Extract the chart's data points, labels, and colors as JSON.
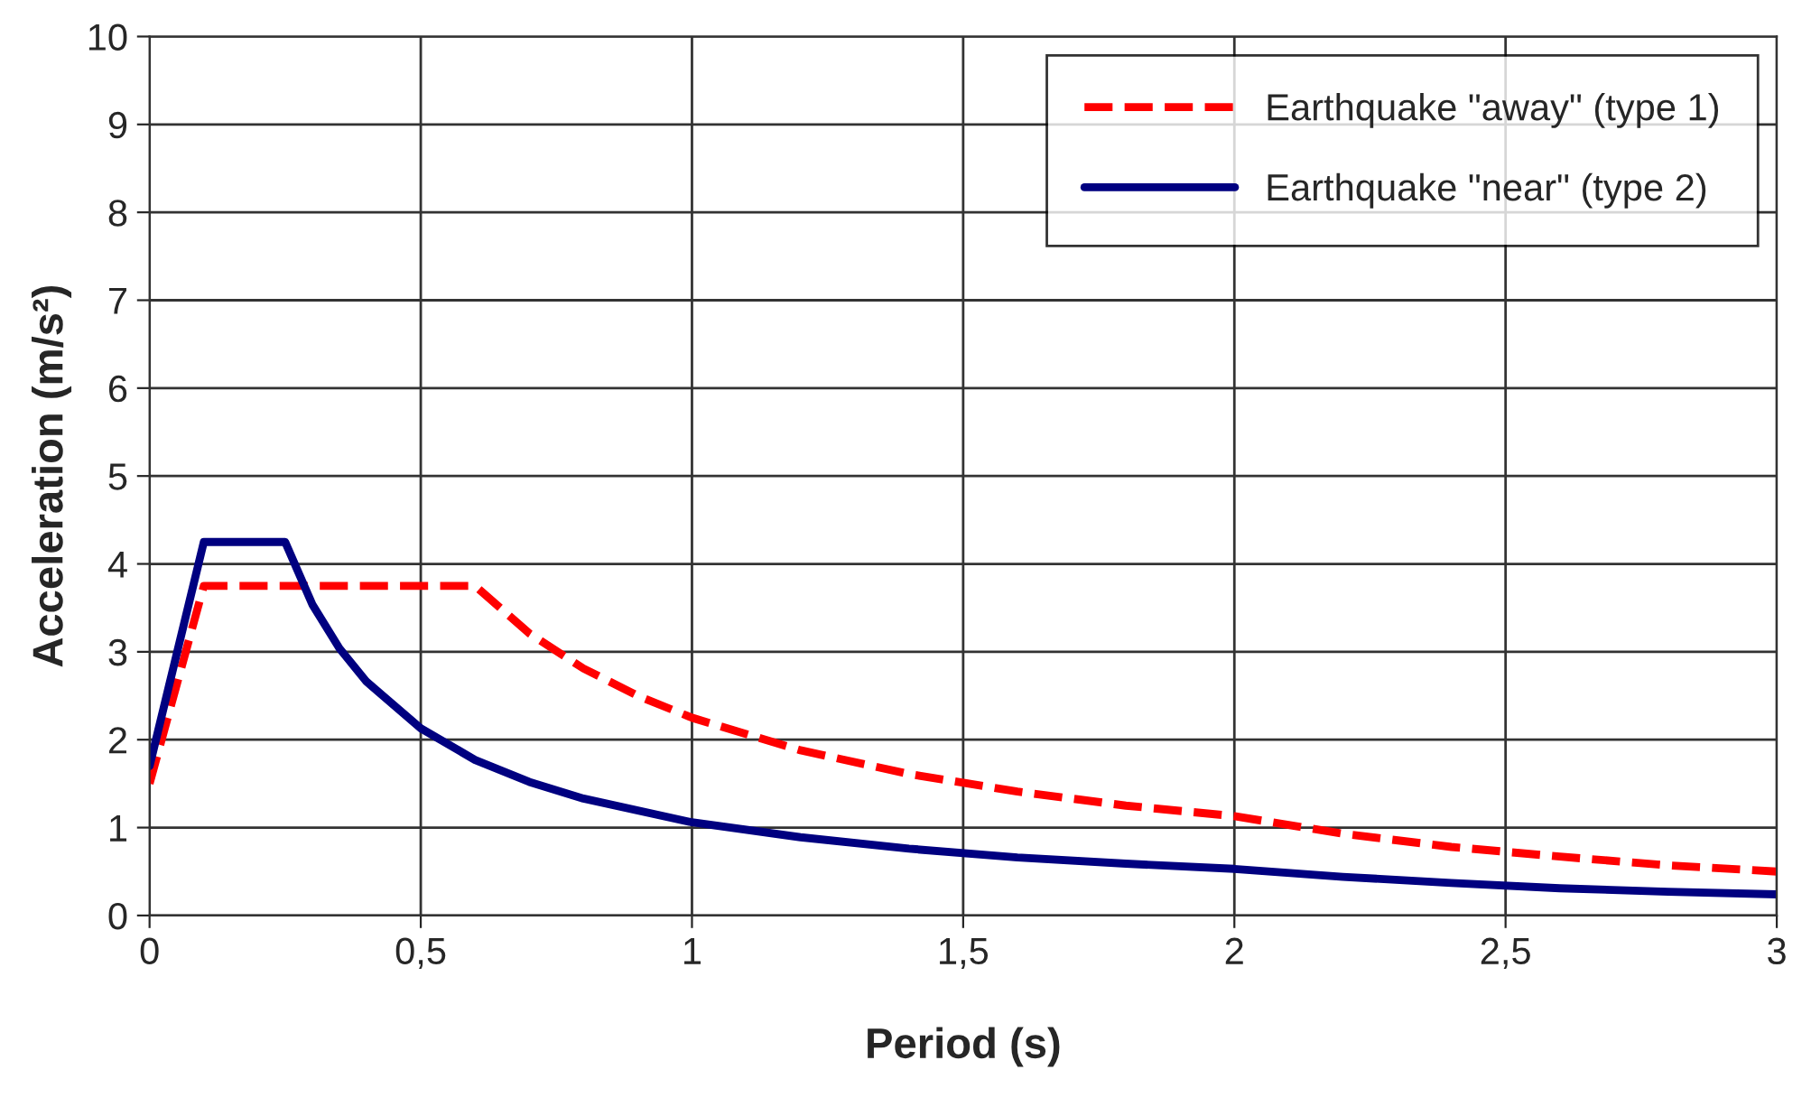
{
  "chart_data": {
    "type": "line",
    "xlabel": "Period (s)",
    "ylabel": "Acceleration (m/s²)",
    "xlim": [
      0,
      3
    ],
    "xticks": [
      0,
      {
        "value": 0.5,
        "label": "0,5"
      },
      1,
      {
        "value": 1.5,
        "label": "1,5"
      },
      2,
      {
        "value": 2.5,
        "label": "2,5"
      },
      3
    ],
    "ylim": [
      0,
      10
    ],
    "yticks": [
      0,
      1,
      2,
      3,
      4,
      5,
      6,
      7,
      8,
      9,
      10
    ],
    "grid": true,
    "legend": "top right",
    "marker": "none",
    "series": [
      {
        "name": "Earthquake \"away\" (type 1)",
        "color": "#ff0000",
        "line_style": "dashed",
        "x": [
          0,
          0.1,
          0.6,
          0.7,
          0.8,
          0.9,
          1,
          1.2,
          1.4,
          1.6,
          1.8,
          2,
          2.2,
          2.4,
          2.6,
          2.8,
          3
        ],
        "values": [
          1.5,
          3.75,
          3.75,
          3.21,
          2.81,
          2.5,
          2.25,
          1.88,
          1.61,
          1.41,
          1.25,
          1.13,
          0.93,
          0.78,
          0.67,
          0.57,
          0.5
        ]
      },
      {
        "name": "Earthquake \"near\" (type 2)",
        "color": "#000080",
        "line_style": "solid",
        "x": [
          0,
          0.1,
          0.25,
          0.3,
          0.35,
          0.4,
          0.5,
          0.6,
          0.7,
          0.8,
          1,
          1.2,
          1.4,
          1.6,
          1.8,
          2,
          2.2,
          2.4,
          2.6,
          2.8,
          3
        ],
        "values": [
          1.7,
          4.25,
          4.25,
          3.54,
          3.04,
          2.66,
          2.13,
          1.77,
          1.52,
          1.33,
          1.06,
          0.89,
          0.76,
          0.66,
          0.59,
          0.53,
          0.44,
          0.37,
          0.31,
          0.27,
          0.24
        ]
      }
    ]
  }
}
